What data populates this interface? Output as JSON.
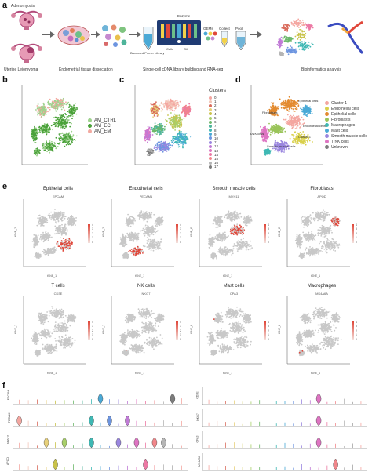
{
  "panel_labels": {
    "a": "a",
    "b": "b",
    "c": "c",
    "d": "d",
    "e": "e",
    "f": "f"
  },
  "panel_a": {
    "tissue_top": "Adenomyosis",
    "tissue_bottom": "Uterine Leiomyoma",
    "step1": "Endometrial tissue dissociation",
    "step2": "Single-cell cDNA library building and RNA-seq",
    "step3": "Bioinformatics analysis",
    "barcoded": "Barcoded Primer Library",
    "enzyme": "Enzyme",
    "gems": "GEMs",
    "collect": "Collect",
    "pool": "Pool",
    "cells": "Cells",
    "oil": "Oil"
  },
  "panel_b": {
    "legend": [
      {
        "label": "AM_CTRL",
        "color": "#9dd28c"
      },
      {
        "label": "AM_EC",
        "color": "#4aa13a"
      },
      {
        "label": "AM_EM",
        "color": "#f2a9a0"
      }
    ],
    "xlabel": "tSNE_1",
    "ylabel": "tSNE_2"
  },
  "panel_c": {
    "legend_title": "Clusters",
    "clusters": [
      {
        "label": "0",
        "color": "#f4a6a0"
      },
      {
        "label": "1",
        "color": "#f3c6b8"
      },
      {
        "label": "2",
        "color": "#d96b5c"
      },
      {
        "label": "3",
        "color": "#e7d07a"
      },
      {
        "label": "4",
        "color": "#c9c24a"
      },
      {
        "label": "5",
        "color": "#a8cf6a"
      },
      {
        "label": "6",
        "color": "#6db86b"
      },
      {
        "label": "7",
        "color": "#4eb49a"
      },
      {
        "label": "8",
        "color": "#3fb8b4"
      },
      {
        "label": "9",
        "color": "#4aa9d6"
      },
      {
        "label": "10",
        "color": "#6d95e0"
      },
      {
        "label": "11",
        "color": "#9a86df"
      },
      {
        "label": "12",
        "color": "#c07ad6"
      },
      {
        "label": "13",
        "color": "#de74c2"
      },
      {
        "label": "14",
        "color": "#ec79a4"
      },
      {
        "label": "15",
        "color": "#f1868a"
      },
      {
        "label": "16",
        "color": "#b5b5b5"
      },
      {
        "label": "17",
        "color": "#7c7c7c"
      }
    ]
  },
  "panel_d": {
    "legend": [
      {
        "label": "Cluster 1",
        "color": "#f4a6a0"
      },
      {
        "label": "Endothelial cells",
        "color": "#d9d04a"
      },
      {
        "label": "Epithelial cells",
        "color": "#e38a2f"
      },
      {
        "label": "Fibroblasts",
        "color": "#9ac45a"
      },
      {
        "label": "Macrophages",
        "color": "#3fb8b4"
      },
      {
        "label": "Mast cells",
        "color": "#4aa9d6"
      },
      {
        "label": "Smooth muscle cells",
        "color": "#9a86df"
      },
      {
        "label": "T/NK cells",
        "color": "#de74c2"
      },
      {
        "label": "Unknown",
        "color": "#7c7c7c"
      }
    ],
    "annotations": [
      "Fibroblasts",
      "Epithelial cells",
      "Endothelial cells",
      "Cluster 1",
      "T/NK cells",
      "Smooth muscle cells"
    ]
  },
  "panel_e": {
    "row1": [
      {
        "title": "Epithelial cells",
        "gene": "EPCAM"
      },
      {
        "title": "Endothelial cells",
        "gene": "PECAM1"
      },
      {
        "title": "Smooth muscle cells",
        "gene": "MYH11"
      },
      {
        "title": "Fibroblasts",
        "gene": "APOD"
      }
    ],
    "row2": [
      {
        "title": "T cells",
        "gene": "CD3E"
      },
      {
        "title": "NK cells",
        "gene": "NKG7"
      },
      {
        "title": "Mast cells",
        "gene": "CPA3"
      },
      {
        "title": "Macrophages",
        "gene": "MS4A6A"
      }
    ],
    "xlabel": "tSNE_1",
    "ylabel": "tSNE_2",
    "scale": [
      "4",
      "3",
      "2",
      "1",
      "0"
    ],
    "base_color": "#c8c8c8",
    "high_color": "#e0473a"
  },
  "panel_f": {
    "left_genes": [
      "EPCAM",
      "PECAM1",
      "MYH11",
      "APOD"
    ],
    "right_genes": [
      "CD3E",
      "NKG7",
      "CPA3",
      "MS4A6A"
    ]
  }
}
